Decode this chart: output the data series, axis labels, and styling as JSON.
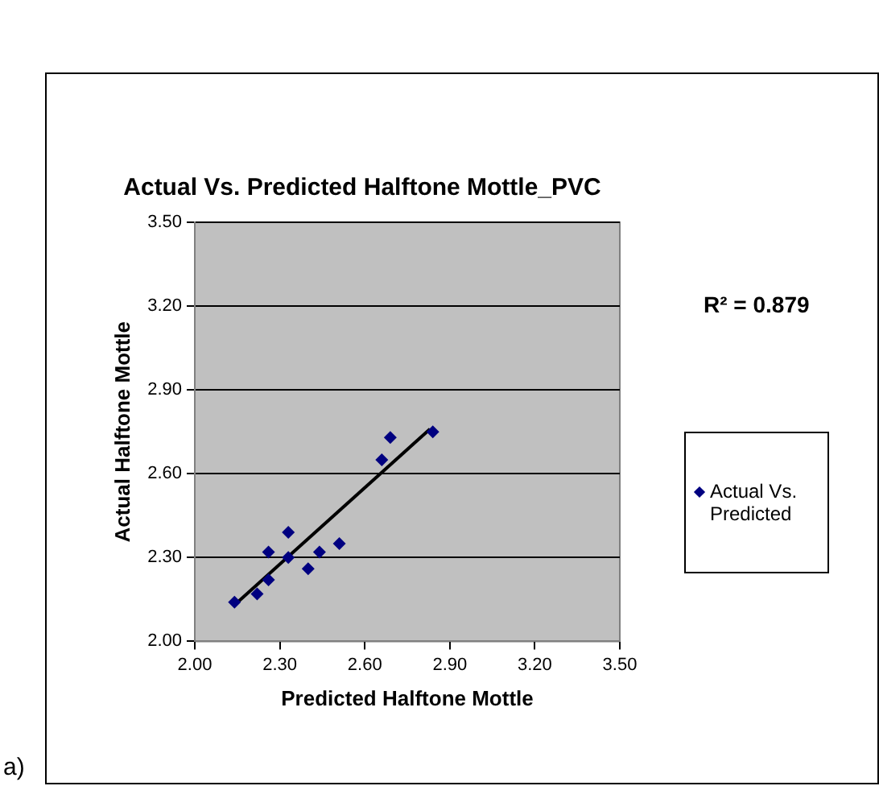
{
  "chart_data": {
    "type": "scatter",
    "title": "Actual Vs. Predicted Halftone Mottle_PVC",
    "xlabel": "Predicted Halftone Mottle",
    "ylabel": "Actual Halftone Mottle",
    "annotations": [
      "R² = 0.879",
      "a)"
    ],
    "series": [
      {
        "name": "Actual Vs. Predicted",
        "color": "#000080",
        "x": [
          2.14,
          2.22,
          2.26,
          2.26,
          2.33,
          2.33,
          2.4,
          2.44,
          2.51,
          2.66,
          2.69,
          2.84
        ],
        "values": [
          2.14,
          2.17,
          2.32,
          2.22,
          2.39,
          2.3,
          2.26,
          2.32,
          2.35,
          2.65,
          2.73,
          2.75
        ]
      },
      {
        "type": "line",
        "color": "#000000",
        "x": [
          2.14,
          2.83
        ],
        "values": [
          2.13,
          2.76
        ],
        "marker": "none"
      }
    ],
    "xlim": [
      2,
      3.5
    ],
    "ylim": [
      2,
      3.5
    ],
    "xticks": [
      {
        "value": 2,
        "label": "2.00"
      },
      {
        "value": 2.3,
        "label": "2.30"
      },
      {
        "value": 2.6,
        "label": "2.60"
      },
      {
        "value": 2.9,
        "label": "2.90"
      },
      {
        "value": 3.2,
        "label": "3.20"
      },
      {
        "value": 3.5,
        "label": "3.50"
      }
    ],
    "yticks": [
      {
        "value": 2,
        "label": "2.00"
      },
      {
        "value": 2.3,
        "label": "2.30"
      },
      {
        "value": 2.6,
        "label": "2.60"
      },
      {
        "value": 2.9,
        "label": "2.90"
      },
      {
        "value": 3.2,
        "label": "3.20"
      },
      {
        "value": 3.5,
        "label": "3.50"
      }
    ],
    "grid": "y",
    "legend": "right",
    "marker": "diamond"
  }
}
